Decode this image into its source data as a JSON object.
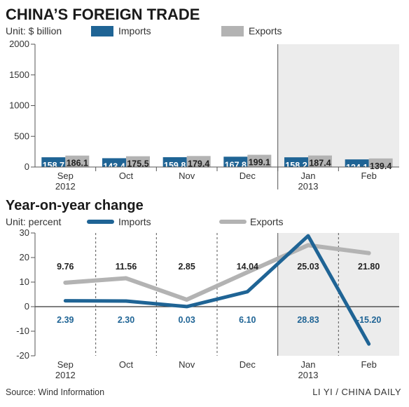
{
  "colors": {
    "imports": "#1f6495",
    "exports": "#b3b3b3",
    "shade": "#ececec",
    "text": "#333333",
    "import_label_text": "#ffffff",
    "import_value_text": "#1f6495",
    "export_value_text": "#222222"
  },
  "header": {
    "title": "CHINA’S FOREIGN TRADE"
  },
  "chart1": {
    "unit": "Unit: $ billion",
    "legend_imports": "Imports",
    "legend_exports": "Exports",
    "cat_labels": [
      "Sep",
      "Oct",
      "Nov",
      "Dec",
      "Jan",
      "Feb"
    ],
    "year_labels": [
      "2012",
      "",
      "",
      "",
      "2013",
      ""
    ]
  },
  "chart2": {
    "title": "Year-on-year change",
    "unit": "Unit: percent",
    "legend_imports": "Imports",
    "legend_exports": "Exports",
    "cat_labels": [
      "Sep",
      "Oct",
      "Nov",
      "Dec",
      "Jan",
      "Feb"
    ],
    "year_labels": [
      "2012",
      "",
      "",
      "",
      "2013",
      ""
    ]
  },
  "footer": {
    "source": "Source: Wind Information",
    "credit": "LI YI / CHINA DAILY"
  },
  "chart_data": [
    {
      "type": "bar",
      "title": "CHINA’S FOREIGN TRADE",
      "ylabel": "Unit: $ billion",
      "ylim": [
        0,
        2000
      ],
      "yticks": [
        0,
        500,
        1000,
        1500,
        2000
      ],
      "categories": [
        "Sep 2012",
        "Oct",
        "Nov",
        "Dec",
        "Jan 2013",
        "Feb"
      ],
      "series": [
        {
          "name": "Imports",
          "values": [
            158.7,
            143.4,
            159.8,
            167.8,
            158.2,
            124.1
          ]
        },
        {
          "name": "Exports",
          "values": [
            186.1,
            175.5,
            179.4,
            199.1,
            187.4,
            139.4
          ]
        }
      ],
      "shaded_categories": [
        "Jan 2013",
        "Feb"
      ],
      "grid": false,
      "legend": "top"
    },
    {
      "type": "line",
      "title": "Year-on-year change",
      "ylabel": "Unit: percent",
      "ylim": [
        -20,
        30
      ],
      "yticks": [
        -20,
        -10,
        0,
        10,
        20,
        30
      ],
      "categories": [
        "Sep 2012",
        "Oct",
        "Nov",
        "Dec",
        "Jan 2013",
        "Feb"
      ],
      "series": [
        {
          "name": "Imports",
          "values": [
            2.39,
            2.3,
            0.03,
            6.1,
            28.83,
            -15.2
          ],
          "labels": [
            "2.39",
            "2.30",
            "0.03",
            "6.10",
            "28.83",
            "-15.20"
          ]
        },
        {
          "name": "Exports",
          "values": [
            9.76,
            11.56,
            2.85,
            14.04,
            25.03,
            21.8
          ],
          "labels": [
            "9.76",
            "11.56",
            "2.85",
            "14.04",
            "25.03",
            "21.80"
          ]
        }
      ],
      "shaded_categories": [
        "Jan 2013",
        "Feb"
      ],
      "grid": "vertical dashed",
      "legend": "top"
    }
  ]
}
